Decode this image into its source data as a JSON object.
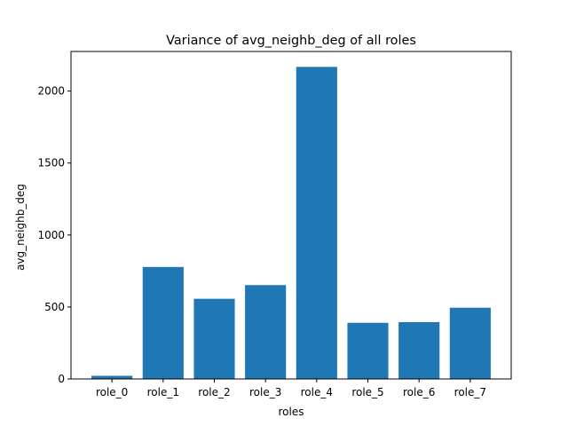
{
  "chart_data": {
    "type": "bar",
    "title": "Variance of avg_neighb_deg of all roles",
    "xlabel": "roles",
    "ylabel": "avg_neighb_deg",
    "categories": [
      "role_0",
      "role_1",
      "role_2",
      "role_3",
      "role_4",
      "role_5",
      "role_6",
      "role_7"
    ],
    "values": [
      22,
      778,
      557,
      652,
      2168,
      390,
      395,
      495
    ],
    "ylim": [
      0,
      2275
    ],
    "yticks": [
      0,
      500,
      1000,
      1500,
      2000
    ],
    "grid": false,
    "legend": "none",
    "bar_color": "#1f77b4"
  }
}
